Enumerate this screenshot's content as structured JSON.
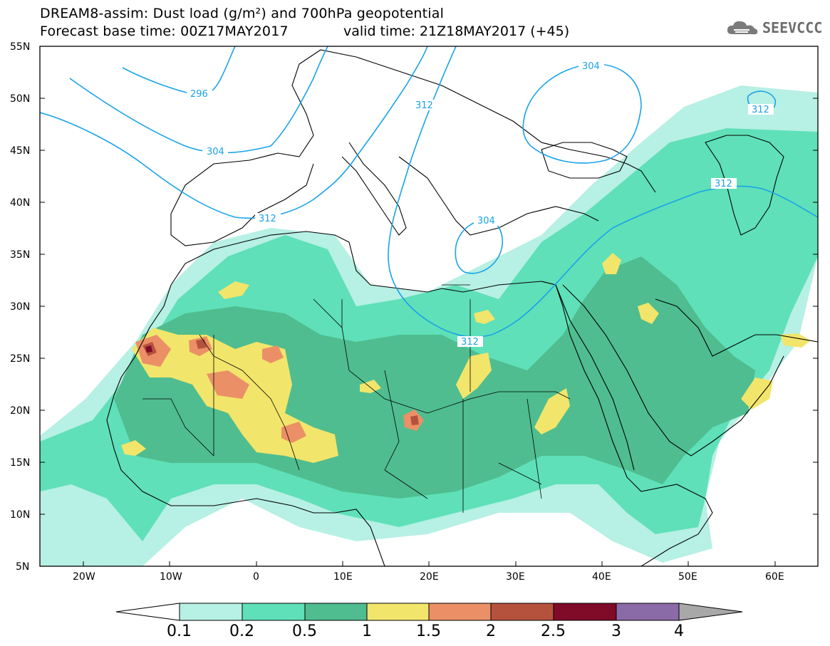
{
  "header": {
    "title_line1": "DREAM8-assim: Dust load (g/m²) and 700hPa geopotential",
    "title_line2": "Forecast base time: 00Z17MAY2017",
    "valid_time": "valid time: 21Z18MAY2017 (+45)"
  },
  "logo": {
    "text": "SEEVCCC",
    "icon": "cloud-icon"
  },
  "map": {
    "projection": "lat-lon",
    "extent": {
      "lon": [
        -25,
        65
      ],
      "lat": [
        5,
        55
      ]
    },
    "lat_labels": [
      "55N",
      "50N",
      "45N",
      "40N",
      "35N",
      "30N",
      "25N",
      "20N",
      "15N",
      "10N",
      "5N"
    ],
    "lon_labels": [
      "20W",
      "10W",
      "0",
      "10E",
      "20E",
      "30E",
      "40E",
      "50E",
      "60E"
    ],
    "contour_labels": [
      "296",
      "304",
      "312",
      "312",
      "304",
      "312",
      "312",
      "312",
      "304",
      "312"
    ],
    "contour_color": "#1aa3e8"
  },
  "colorbar": {
    "labels": [
      "0.1",
      "0.2",
      "0.5",
      "1",
      "1.5",
      "2",
      "2.5",
      "3",
      "4"
    ],
    "colors": [
      "#b7f0e4",
      "#5fe0b8",
      "#4fbd8f",
      "#f2e56b",
      "#eb9066",
      "#b5523d",
      "#7f0b28",
      "#8b6aa8",
      "#a8a8a8"
    ]
  }
}
